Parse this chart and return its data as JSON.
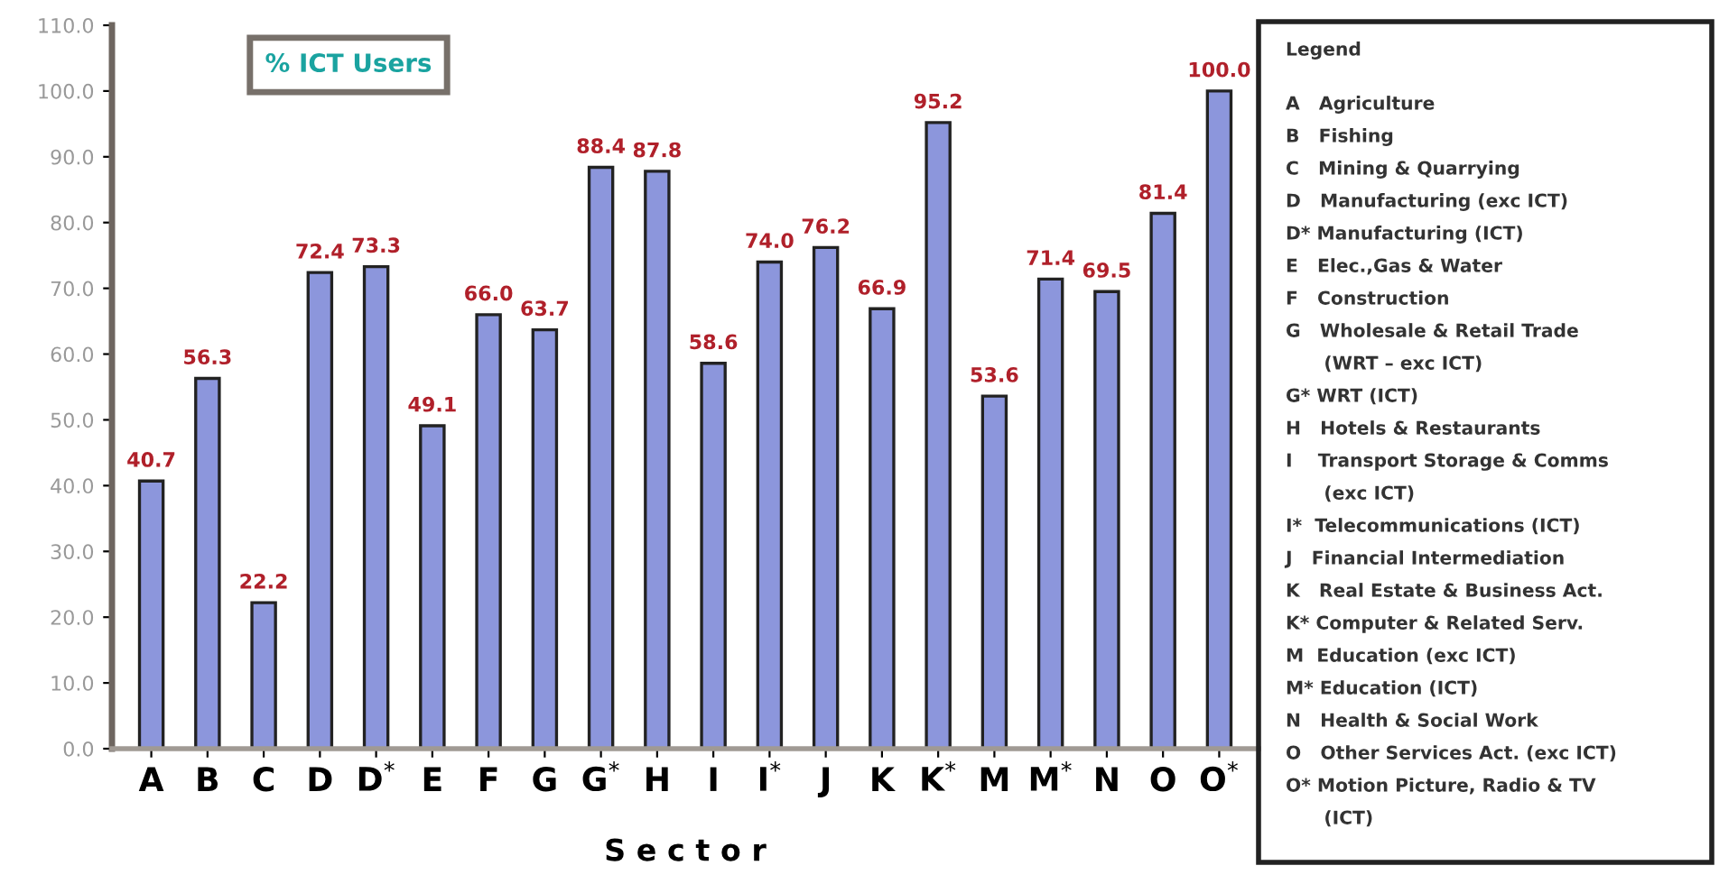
{
  "chart_data": {
    "type": "bar",
    "title": "% ICT Users",
    "xlabel": "S e c t o r",
    "categories": [
      "A",
      "B",
      "C",
      "D",
      "D$^{*}$",
      "E",
      "F",
      "G",
      "G$^{*}$",
      "H",
      "I",
      "I$^{*}$",
      "J",
      "K",
      "K$^{*}$",
      "M",
      "M$^{*}$",
      "N",
      "O",
      "O$^{*}$"
    ],
    "values": [
      40.7,
      56.3,
      22.2,
      72.4,
      73.3,
      49.1,
      66.0,
      63.7,
      88.4,
      87.8,
      58.6,
      74.0,
      76.2,
      66.9,
      95.2,
      53.6,
      71.4,
      69.5,
      81.4,
      100.0
    ],
    "value_labels": [
      "40.7",
      "56.3",
      "22.2",
      "72.4",
      "73.3",
      "49.1",
      "66.0",
      "63.7",
      "88.4",
      "87.8",
      "58.6",
      "74.0",
      "76.2",
      "66.9",
      "95.2",
      "53.6",
      "71.4",
      "69.5",
      "81.4",
      "100.0"
    ],
    "color": "#8c96dc",
    "ylim": [
      0,
      110
    ],
    "yticks": [
      {
        "value": 0,
        "label": "0.0"
      },
      {
        "value": 10,
        "label": "10.0"
      },
      {
        "value": 20,
        "label": "20.0"
      },
      {
        "value": 30,
        "label": "30.0"
      },
      {
        "value": 40,
        "label": "40.0"
      },
      {
        "value": 50,
        "label": "50.0"
      },
      {
        "value": 60,
        "label": "60.0"
      },
      {
        "value": 70,
        "label": "70.0"
      },
      {
        "value": 80,
        "label": "80.0"
      },
      {
        "value": 90,
        "label": "90.0"
      },
      {
        "value": 100,
        "label": "100.0"
      },
      {
        "value": 110,
        "label": "110.0"
      }
    ],
    "grid": false,
    "annotations": [
      "Legend",
      "A   Agriculture",
      "B   Fishing",
      "C   Mining & Quarrying",
      "D   Manufacturing (exc ICT)",
      "D* Manufacturing (ICT)",
      "E   Elec.,Gas & Water",
      "F   Construction",
      "G   Wholesale & Retail Trade",
      "      (WRT – exc ICT)",
      "G* WRT (ICT)",
      "H   Hotels & Restaurants",
      "I    Transport Storage & Comms",
      "      (exc ICT)",
      "I*  Telecommunications (ICT)",
      "J   Financial Intermediation",
      "K   Real Estate & Business Act.",
      "K* Computer & Related Serv.",
      "M  Education (exc ICT)",
      "M* Education (ICT)",
      "N   Health & Social Work",
      "O   Other Services Act. (exc ICT)",
      "O* Motion Picture, Radio & TV",
      "      (ICT)"
    ]
  }
}
